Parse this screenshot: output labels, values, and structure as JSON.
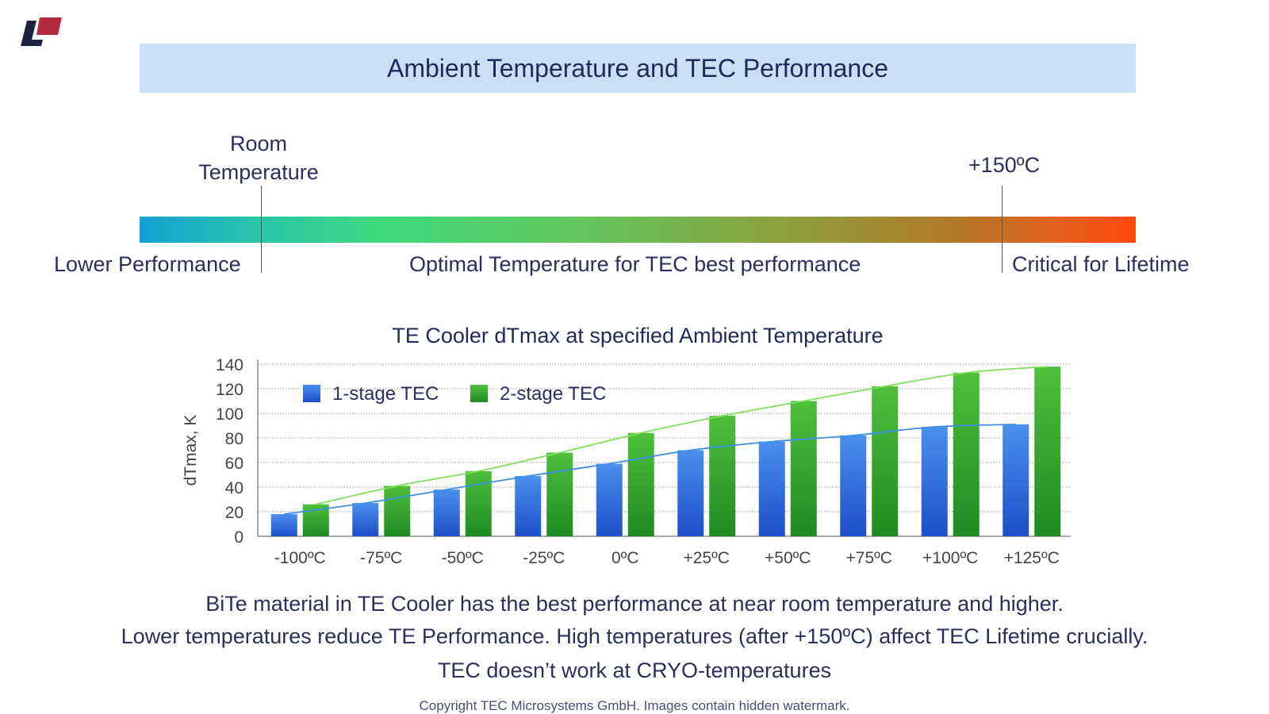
{
  "header": {
    "title": "Ambient Temperature and TEC Performance"
  },
  "temperature_scale": {
    "room_label": "Room\nTemperature",
    "hot_label": "+150ºC",
    "zones": {
      "lower": "Lower Performance",
      "optimal": "Optimal Temperature for TEC best performance",
      "critical": "Critical for Lifetime"
    },
    "gradient_colors": [
      "#159fd6",
      "#3fd97a",
      "#8da03d",
      "#ff4a10"
    ]
  },
  "chart_data": {
    "type": "bar",
    "title": "TE Cooler dTmax at specified Ambient Temperature",
    "xlabel": "",
    "ylabel": "dTmax, K",
    "ylim": [
      0,
      140
    ],
    "yticks": [
      0,
      20,
      40,
      60,
      80,
      100,
      120,
      140
    ],
    "grid": true,
    "legend_position": "top-left",
    "categories": [
      "-100ºC",
      "-75ºC",
      "-50ºC",
      "-25ºC",
      "0ºC",
      "+25ºC",
      "+50ºC",
      "+75ºC",
      "+100ºC",
      "+125ºC"
    ],
    "series": [
      {
        "name": "1-stage TEC",
        "color": "#2f6fe0",
        "trend_color": "#3d8fe6",
        "values": [
          18,
          27,
          38,
          49,
          59,
          70,
          77,
          82,
          89,
          91
        ]
      },
      {
        "name": "2-stage TEC",
        "color": "#3aa830",
        "trend_color": "#7fe05a",
        "values": [
          26,
          41,
          53,
          68,
          84,
          98,
          110,
          122,
          133,
          138
        ]
      }
    ]
  },
  "captions": {
    "line1": "BiTe material in TE Cooler has the best performance at near room temperature and higher.",
    "line2": "Lower temperatures reduce TE Performance. High temperatures (after +150ºC) affect TEC Lifetime crucially.",
    "line3": "TEC doesn’t work at CRYO-temperatures"
  },
  "footer": {
    "copyright": "Copyright TEC Microsystems GmbH. Images contain hidden watermark."
  }
}
